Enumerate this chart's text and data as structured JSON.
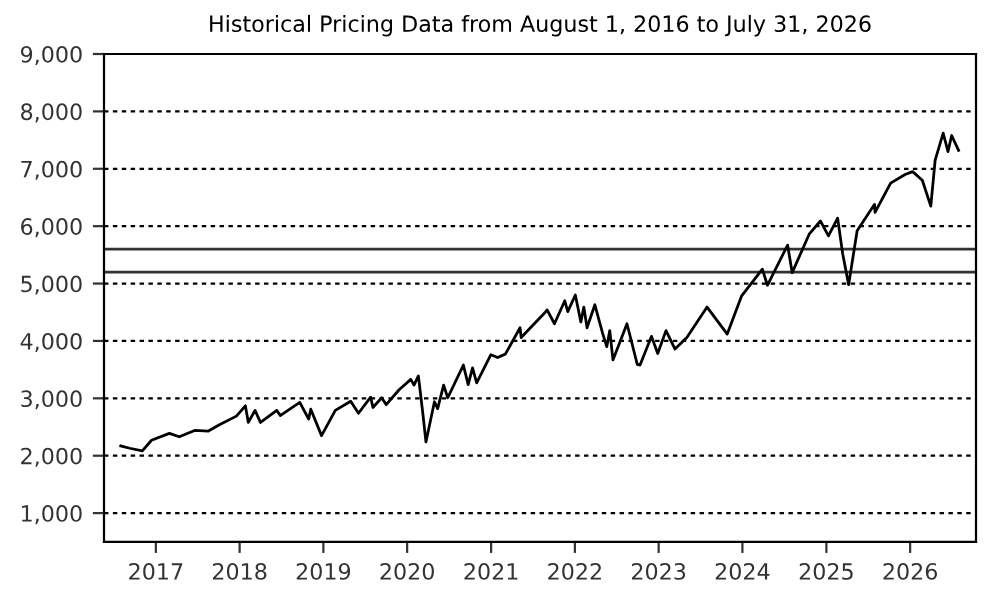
{
  "chart_data": {
    "type": "line",
    "title": "Historical Pricing Data from August 1, 2016 to July 31, 2026",
    "x": [
      "2016-08-01",
      "2016-09-09",
      "2016-11-03",
      "2016-12-13",
      "2017-03-01",
      "2017-04-13",
      "2017-06-19",
      "2017-08-18",
      "2017-10-05",
      "2017-12-18",
      "2018-01-26",
      "2018-02-08",
      "2018-03-09",
      "2018-04-02",
      "2018-06-12",
      "2018-06-27",
      "2018-09-20",
      "2018-10-29",
      "2018-11-07",
      "2018-12-24",
      "2019-02-22",
      "2019-04-30",
      "2019-06-03",
      "2019-07-26",
      "2019-08-05",
      "2019-09-12",
      "2019-10-02",
      "2019-11-27",
      "2020-01-17",
      "2020-01-31",
      "2020-02-19",
      "2020-03-09",
      "2020-03-23",
      "2020-04-29",
      "2020-05-13",
      "2020-06-08",
      "2020-06-26",
      "2020-09-02",
      "2020-09-23",
      "2020-10-12",
      "2020-10-30",
      "2020-12-31",
      "2021-01-29",
      "2021-03-04",
      "2021-05-07",
      "2021-05-12",
      "2021-08-27",
      "2021-09-02",
      "2021-10-04",
      "2021-11-18",
      "2021-12-01",
      "2022-01-03",
      "2022-01-27",
      "2022-02-09",
      "2022-02-23",
      "2022-03-29",
      "2022-05-02",
      "2022-05-20",
      "2022-06-02",
      "2022-06-16",
      "2022-08-16",
      "2022-09-30",
      "2022-10-12",
      "2022-12-01",
      "2022-12-28",
      "2023-02-02",
      "2023-03-13",
      "2023-05-04",
      "2023-07-31",
      "2023-10-27",
      "2023-12-28",
      "2024-03-28",
      "2024-04-19",
      "2024-07-16",
      "2024-08-05",
      "2024-10-18",
      "2024-12-06",
      "2025-01-10",
      "2025-02-19",
      "2025-03-13",
      "2025-04-08",
      "2025-05-15",
      "2025-07-30",
      "2025-08-01",
      "2025-10-08",
      "2025-12-10",
      "2026-01-12",
      "2026-02-23",
      "2026-04-01",
      "2026-04-20",
      "2026-05-25",
      "2026-06-15",
      "2026-07-01",
      "2026-07-31"
    ],
    "values": [
      2170,
      2130,
      2085,
      2270,
      2390,
      2330,
      2440,
      2430,
      2540,
      2690,
      2870,
      2580,
      2790,
      2580,
      2790,
      2700,
      2930,
      2640,
      2810,
      2350,
      2790,
      2950,
      2740,
      3020,
      2840,
      3010,
      2890,
      3150,
      3330,
      3230,
      3390,
      2750,
      2240,
      2940,
      2820,
      3230,
      3010,
      3580,
      3240,
      3530,
      3270,
      3760,
      3710,
      3770,
      4230,
      4060,
      4510,
      4540,
      4300,
      4700,
      4510,
      4800,
      4330,
      4590,
      4230,
      4630,
      4130,
      3900,
      4180,
      3670,
      4300,
      3590,
      3580,
      4080,
      3780,
      4180,
      3860,
      4060,
      4590,
      4120,
      4780,
      5250,
      4970,
      5670,
      5190,
      5860,
      6090,
      5830,
      6140,
      5520,
      4980,
      5920,
      6380,
      6240,
      6750,
      6900,
      6950,
      6800,
      6350,
      7150,
      7620,
      7300,
      7580,
      7320
    ],
    "color": "#000000",
    "marker": "none",
    "line_style": "solid",
    "xlim": [
      "2016-05-20",
      "2026-10-15"
    ],
    "xticks": [
      {
        "value": "2017-01-01",
        "label": "2017"
      },
      {
        "value": "2018-01-01",
        "label": "2018"
      },
      {
        "value": "2019-01-01",
        "label": "2019"
      },
      {
        "value": "2020-01-01",
        "label": "2020"
      },
      {
        "value": "2021-01-01",
        "label": "2021"
      },
      {
        "value": "2022-01-01",
        "label": "2022"
      },
      {
        "value": "2023-01-01",
        "label": "2023"
      },
      {
        "value": "2024-01-01",
        "label": "2024"
      },
      {
        "value": "2025-01-01",
        "label": "2025"
      },
      {
        "value": "2026-01-01",
        "label": "2026"
      }
    ],
    "ylim": [
      500,
      9000
    ],
    "yticks": [
      {
        "value": 1000,
        "label": "1,000"
      },
      {
        "value": 2000,
        "label": "2,000"
      },
      {
        "value": 3000,
        "label": "3,000"
      },
      {
        "value": 4000,
        "label": "4,000"
      },
      {
        "value": 5000,
        "label": "5,000"
      },
      {
        "value": 6000,
        "label": "6,000"
      },
      {
        "value": 7000,
        "label": "7,000"
      },
      {
        "value": 8000,
        "label": "8,000"
      },
      {
        "value": 9000,
        "label": "9,000"
      }
    ],
    "grid": "y",
    "ref_lines": [
      {
        "axis": "y",
        "value": 5200,
        "color": "#333333",
        "line_style": "solid"
      },
      {
        "axis": "y",
        "value": 5600,
        "color": "#333333",
        "line_style": "solid"
      }
    ]
  }
}
